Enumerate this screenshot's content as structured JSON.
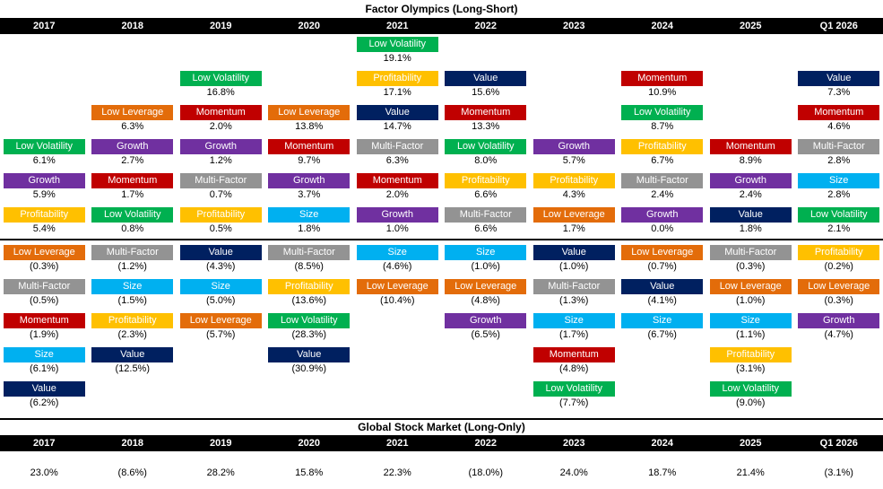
{
  "factor_colors": {
    "Low Volatility": "#00B050",
    "Profitability": "#FFC000",
    "Value": "#002060",
    "Momentum": "#C00000",
    "Low Leverage": "#E36C0A",
    "Multi-Factor": "#939393",
    "Growth": "#7030A0",
    "Size": "#00B0F0"
  },
  "chart_data": [
    {
      "type": "table",
      "title": "Factor Olympics (Long-Short)",
      "layout": "ranked factor columns per year; positive returns stacked above zero line (bottom-aligned), negative returns below (top-aligned); losses shown in parentheses",
      "columns": [
        {
          "year": "2017",
          "positive": [
            {
              "factor": "Low Volatility",
              "value": 6.1,
              "label": "6.1%"
            },
            {
              "factor": "Growth",
              "value": 5.9,
              "label": "5.9%"
            },
            {
              "factor": "Profitability",
              "value": 5.4,
              "label": "5.4%"
            }
          ],
          "negative": [
            {
              "factor": "Low Leverage",
              "value": -0.3,
              "label": "(0.3%)"
            },
            {
              "factor": "Multi-Factor",
              "value": -0.5,
              "label": "(0.5%)"
            },
            {
              "factor": "Momentum",
              "value": -1.9,
              "label": "(1.9%)"
            },
            {
              "factor": "Size",
              "value": -6.1,
              "label": "(6.1%)"
            },
            {
              "factor": "Value",
              "value": -6.2,
              "label": "(6.2%)"
            }
          ]
        },
        {
          "year": "2018",
          "positive": [
            {
              "factor": "Low Leverage",
              "value": 6.3,
              "label": "6.3%"
            },
            {
              "factor": "Growth",
              "value": 2.7,
              "label": "2.7%"
            },
            {
              "factor": "Momentum",
              "value": 1.7,
              "label": "1.7%"
            },
            {
              "factor": "Low Volatility",
              "value": 0.8,
              "label": "0.8%"
            }
          ],
          "negative": [
            {
              "factor": "Multi-Factor",
              "value": -1.2,
              "label": "(1.2%)"
            },
            {
              "factor": "Size",
              "value": -1.5,
              "label": "(1.5%)"
            },
            {
              "factor": "Profitability",
              "value": -2.3,
              "label": "(2.3%)"
            },
            {
              "factor": "Value",
              "value": -12.5,
              "label": "(12.5%)"
            }
          ]
        },
        {
          "year": "2019",
          "positive": [
            {
              "factor": "Low Volatility",
              "value": 16.8,
              "label": "16.8%"
            },
            {
              "factor": "Momentum",
              "value": 2.0,
              "label": "2.0%"
            },
            {
              "factor": "Growth",
              "value": 1.2,
              "label": "1.2%"
            },
            {
              "factor": "Multi-Factor",
              "value": 0.7,
              "label": "0.7%"
            },
            {
              "factor": "Profitability",
              "value": 0.5,
              "label": "0.5%"
            }
          ],
          "negative": [
            {
              "factor": "Value",
              "value": -4.3,
              "label": "(4.3%)"
            },
            {
              "factor": "Size",
              "value": -5.0,
              "label": "(5.0%)"
            },
            {
              "factor": "Low Leverage",
              "value": -5.7,
              "label": "(5.7%)"
            }
          ]
        },
        {
          "year": "2020",
          "positive": [
            {
              "factor": "Low Leverage",
              "value": 13.8,
              "label": "13.8%"
            },
            {
              "factor": "Momentum",
              "value": 9.7,
              "label": "9.7%"
            },
            {
              "factor": "Growth",
              "value": 3.7,
              "label": "3.7%"
            },
            {
              "factor": "Size",
              "value": 1.8,
              "label": "1.8%"
            }
          ],
          "negative": [
            {
              "factor": "Multi-Factor",
              "value": -8.5,
              "label": "(8.5%)"
            },
            {
              "factor": "Profitability",
              "value": -13.6,
              "label": "(13.6%)"
            },
            {
              "factor": "Low Volatility",
              "value": -28.3,
              "label": "(28.3%)"
            },
            {
              "factor": "Value",
              "value": -30.9,
              "label": "(30.9%)"
            }
          ]
        },
        {
          "year": "2021",
          "positive": [
            {
              "factor": "Low Volatility",
              "value": 19.1,
              "label": "19.1%"
            },
            {
              "factor": "Profitability",
              "value": 17.1,
              "label": "17.1%"
            },
            {
              "factor": "Value",
              "value": 14.7,
              "label": "14.7%"
            },
            {
              "factor": "Multi-Factor",
              "value": 6.3,
              "label": "6.3%"
            },
            {
              "factor": "Momentum",
              "value": 2.0,
              "label": "2.0%"
            },
            {
              "factor": "Growth",
              "value": 1.0,
              "label": "1.0%"
            }
          ],
          "negative": [
            {
              "factor": "Size",
              "value": -4.6,
              "label": "(4.6%)"
            },
            {
              "factor": "Low Leverage",
              "value": -10.4,
              "label": "(10.4%)"
            }
          ]
        },
        {
          "year": "2022",
          "positive": [
            {
              "factor": "Value",
              "value": 15.6,
              "label": "15.6%"
            },
            {
              "factor": "Momentum",
              "value": 13.3,
              "label": "13.3%"
            },
            {
              "factor": "Low Volatility",
              "value": 8.0,
              "label": "8.0%"
            },
            {
              "factor": "Profitability",
              "value": 6.6,
              "label": "6.6%"
            },
            {
              "factor": "Multi-Factor",
              "value": 6.6,
              "label": "6.6%"
            }
          ],
          "negative": [
            {
              "factor": "Size",
              "value": -1.0,
              "label": "(1.0%)"
            },
            {
              "factor": "Low Leverage",
              "value": -4.8,
              "label": "(4.8%)"
            },
            {
              "factor": "Growth",
              "value": -6.5,
              "label": "(6.5%)"
            }
          ]
        },
        {
          "year": "2023",
          "positive": [
            {
              "factor": "Growth",
              "value": 5.7,
              "label": "5.7%"
            },
            {
              "factor": "Profitability",
              "value": 4.3,
              "label": "4.3%"
            },
            {
              "factor": "Low Leverage",
              "value": 1.7,
              "label": "1.7%"
            }
          ],
          "negative": [
            {
              "factor": "Value",
              "value": -1.0,
              "label": "(1.0%)"
            },
            {
              "factor": "Multi-Factor",
              "value": -1.3,
              "label": "(1.3%)"
            },
            {
              "factor": "Size",
              "value": -1.7,
              "label": "(1.7%)"
            },
            {
              "factor": "Momentum",
              "value": -4.8,
              "label": "(4.8%)"
            },
            {
              "factor": "Low Volatility",
              "value": -7.7,
              "label": "(7.7%)"
            }
          ]
        },
        {
          "year": "2024",
          "positive": [
            {
              "factor": "Momentum",
              "value": 10.9,
              "label": "10.9%"
            },
            {
              "factor": "Low Volatility",
              "value": 8.7,
              "label": "8.7%"
            },
            {
              "factor": "Profitability",
              "value": 6.7,
              "label": "6.7%"
            },
            {
              "factor": "Multi-Factor",
              "value": 2.4,
              "label": "2.4%"
            },
            {
              "factor": "Growth",
              "value": 0.0,
              "label": "0.0%"
            }
          ],
          "negative": [
            {
              "factor": "Low Leverage",
              "value": -0.7,
              "label": "(0.7%)"
            },
            {
              "factor": "Value",
              "value": -4.1,
              "label": "(4.1%)"
            },
            {
              "factor": "Size",
              "value": -6.7,
              "label": "(6.7%)"
            }
          ]
        },
        {
          "year": "2025",
          "positive": [
            {
              "factor": "Momentum",
              "value": 8.9,
              "label": "8.9%"
            },
            {
              "factor": "Growth",
              "value": 2.4,
              "label": "2.4%"
            },
            {
              "factor": "Value",
              "value": 1.8,
              "label": "1.8%"
            }
          ],
          "negative": [
            {
              "factor": "Multi-Factor",
              "value": -0.3,
              "label": "(0.3%)"
            },
            {
              "factor": "Low Leverage",
              "value": -1.0,
              "label": "(1.0%)"
            },
            {
              "factor": "Size",
              "value": -1.1,
              "label": "(1.1%)"
            },
            {
              "factor": "Profitability",
              "value": -3.1,
              "label": "(3.1%)"
            },
            {
              "factor": "Low Volatility",
              "value": -9.0,
              "label": "(9.0%)"
            }
          ]
        },
        {
          "year": "Q1 2026",
          "positive": [
            {
              "factor": "Value",
              "value": 7.3,
              "label": "7.3%"
            },
            {
              "factor": "Momentum",
              "value": 4.6,
              "label": "4.6%"
            },
            {
              "factor": "Multi-Factor",
              "value": 2.8,
              "label": "2.8%"
            },
            {
              "factor": "Size",
              "value": 2.8,
              "label": "2.8%"
            },
            {
              "factor": "Low Volatility",
              "value": 2.1,
              "label": "2.1%"
            }
          ],
          "negative": [
            {
              "factor": "Profitability",
              "value": -0.2,
              "label": "(0.2%)"
            },
            {
              "factor": "Low Leverage",
              "value": -0.3,
              "label": "(0.3%)"
            },
            {
              "factor": "Growth",
              "value": -4.7,
              "label": "(4.7%)"
            }
          ]
        }
      ]
    },
    {
      "type": "table",
      "title": "Global Stock Market (Long-Only)",
      "columns": [
        "2017",
        "2018",
        "2019",
        "2020",
        "2021",
        "2022",
        "2023",
        "2024",
        "2025",
        "Q1 2026"
      ],
      "values": [
        23.0,
        -8.6,
        28.2,
        15.8,
        22.3,
        -18.0,
        24.0,
        18.7,
        21.4,
        -3.1
      ],
      "labels": [
        "23.0%",
        "(8.6%)",
        "28.2%",
        "15.8%",
        "22.3%",
        "(18.0%)",
        "24.0%",
        "18.7%",
        "21.4%",
        "(3.1%)"
      ]
    }
  ]
}
